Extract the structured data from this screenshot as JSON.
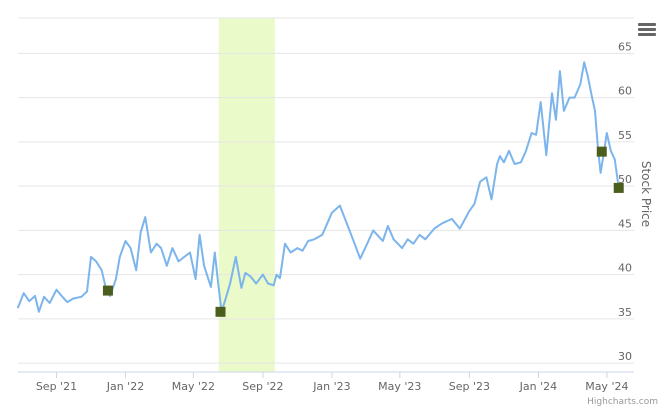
{
  "chart_data": {
    "type": "line",
    "title": "",
    "xlabel": "",
    "ylabel": "Stock Price",
    "ylim": [
      29,
      69
    ],
    "xlim": [
      "2021-06-25",
      "2024-06-18"
    ],
    "grid": true,
    "legend": "none",
    "y_ticks": [
      30,
      35,
      40,
      45,
      50,
      55,
      60,
      65
    ],
    "x_ticks": [
      {
        "date": "2021-09-01",
        "label": "Sep '21"
      },
      {
        "date": "2022-01-01",
        "label": "Jan '22"
      },
      {
        "date": "2022-05-01",
        "label": "May '22"
      },
      {
        "date": "2022-09-01",
        "label": "Sep '22"
      },
      {
        "date": "2023-01-01",
        "label": "Jan '23"
      },
      {
        "date": "2023-05-01",
        "label": "May '23"
      },
      {
        "date": "2023-09-01",
        "label": "Sep '23"
      },
      {
        "date": "2024-01-01",
        "label": "Jan '24"
      },
      {
        "date": "2024-05-01",
        "label": "May '24"
      }
    ],
    "shaded_band": {
      "from": "2022-06-15",
      "to": "2022-09-22",
      "color": "#eafac8"
    },
    "series": [
      {
        "color": "#7cb5ec",
        "x": [
          "2021-06-25",
          "2021-07-05",
          "2021-07-15",
          "2021-07-25",
          "2021-08-01",
          "2021-08-10",
          "2021-08-20",
          "2021-09-01",
          "2021-09-10",
          "2021-09-20",
          "2021-10-01",
          "2021-10-15",
          "2021-10-25",
          "2021-11-01",
          "2021-11-10",
          "2021-11-20",
          "2021-11-28",
          "2021-12-05",
          "2021-12-15",
          "2021-12-22",
          "2022-01-01",
          "2022-01-10",
          "2022-01-20",
          "2022-01-28",
          "2022-02-05",
          "2022-02-15",
          "2022-02-25",
          "2022-03-05",
          "2022-03-15",
          "2022-03-25",
          "2022-04-05",
          "2022-04-15",
          "2022-04-25",
          "2022-05-05",
          "2022-05-12",
          "2022-05-20",
          "2022-06-01",
          "2022-06-08",
          "2022-06-14",
          "2022-06-20",
          "2022-06-28",
          "2022-07-05",
          "2022-07-15",
          "2022-07-25",
          "2022-08-01",
          "2022-08-10",
          "2022-08-20",
          "2022-09-01",
          "2022-09-10",
          "2022-09-20",
          "2022-09-25",
          "2022-10-01",
          "2022-10-10",
          "2022-10-20",
          "2022-11-01",
          "2022-11-10",
          "2022-11-20",
          "2022-12-01",
          "2022-12-15",
          "2023-01-01",
          "2023-01-15",
          "2023-02-01",
          "2023-02-10",
          "2023-02-20",
          "2023-03-05",
          "2023-03-15",
          "2023-04-01",
          "2023-04-10",
          "2023-04-20",
          "2023-05-05",
          "2023-05-15",
          "2023-05-25",
          "2023-06-05",
          "2023-06-15",
          "2023-07-01",
          "2023-07-15",
          "2023-08-01",
          "2023-08-15",
          "2023-09-01",
          "2023-09-10",
          "2023-09-20",
          "2023-10-01",
          "2023-10-10",
          "2023-10-20",
          "2023-10-25",
          "2023-11-01",
          "2023-11-10",
          "2023-11-20",
          "2023-12-01",
          "2023-12-10",
          "2023-12-20",
          "2023-12-28",
          "2024-01-05",
          "2024-01-15",
          "2024-01-25",
          "2024-02-01",
          "2024-02-08",
          "2024-02-15",
          "2024-02-25",
          "2024-03-05",
          "2024-03-15",
          "2024-03-22",
          "2024-03-28",
          "2024-04-05",
          "2024-04-10",
          "2024-04-15",
          "2024-04-20",
          "2024-04-25",
          "2024-05-01",
          "2024-05-08",
          "2024-05-15",
          "2024-05-22"
        ],
        "values": [
          36.3,
          37.9,
          37.0,
          37.6,
          35.8,
          37.5,
          36.8,
          38.3,
          37.6,
          36.9,
          37.3,
          37.5,
          38.1,
          42.0,
          41.5,
          40.5,
          38.3,
          37.6,
          39.5,
          42.0,
          43.8,
          43.0,
          40.5,
          44.8,
          46.5,
          42.5,
          43.5,
          43.0,
          41.0,
          43.0,
          41.5,
          42.0,
          42.5,
          39.5,
          44.5,
          41.0,
          38.6,
          42.5,
          39.0,
          35.8,
          37.5,
          39.0,
          42.0,
          38.5,
          40.2,
          39.8,
          39.0,
          40.0,
          39.0,
          38.8,
          40.0,
          39.6,
          43.5,
          42.5,
          43.0,
          42.7,
          43.8,
          44.0,
          44.5,
          47.0,
          47.8,
          45.0,
          43.5,
          41.8,
          43.6,
          45.0,
          43.8,
          45.5,
          44.0,
          43.0,
          44.0,
          43.5,
          44.5,
          44.0,
          45.2,
          45.8,
          46.3,
          45.2,
          47.2,
          48.0,
          50.5,
          51.0,
          48.5,
          52.5,
          53.4,
          52.7,
          54.0,
          52.5,
          52.7,
          54.0,
          56.0,
          55.8,
          59.5,
          53.5,
          60.5,
          57.5,
          63.0,
          58.5,
          60.0,
          60.0,
          61.5,
          64.0,
          62.5,
          60.0,
          58.5,
          54.5,
          51.5,
          53.5,
          56.0,
          54.0,
          53.0,
          49.8
        ]
      },
      {
        "name": "",
        "type": "markers",
        "color": "#4b5e1e",
        "x": [
          "2021-12-01",
          "2022-06-18",
          "2024-04-22",
          "2024-05-22"
        ],
        "values": [
          38.2,
          35.8,
          53.9,
          49.8
        ]
      }
    ]
  },
  "ui": {
    "menu_icon": "hamburger-menu-icon",
    "credits": "Highcharts.com"
  }
}
